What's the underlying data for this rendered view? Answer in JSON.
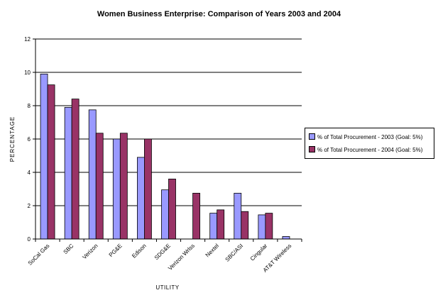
{
  "chart_data": {
    "type": "bar",
    "title": "Women Business Enterprise: Comparison of Years 2003 and 2004",
    "xlabel": "UTILITY",
    "ylabel": "PERCENTAGE",
    "ylim": [
      0,
      12
    ],
    "yticks": [
      "0",
      "2",
      "4",
      "6",
      "8",
      "10",
      "12"
    ],
    "grid": true,
    "legend_position": "right",
    "categories": [
      "SoCal Gas",
      "SBC",
      "Verizon",
      "PG&E",
      "Edison",
      "SDG&E",
      "Verizon Wrlss",
      "Nextel",
      "SBC/ASI",
      "Cingular",
      "AT&T Wireless"
    ],
    "series": [
      {
        "name": "% of Total Procurement - 2003 (Goal: 5%)",
        "color": "#9999FF",
        "values": [
          9.9,
          7.9,
          7.75,
          6.0,
          4.9,
          2.95,
          null,
          1.55,
          2.75,
          1.45,
          0.15
        ]
      },
      {
        "name": "% of Total Procurement - 2004 (Goal: 5%)",
        "color": "#993366",
        "values": [
          9.25,
          8.4,
          6.35,
          6.35,
          6.0,
          3.6,
          2.75,
          1.75,
          1.65,
          1.55,
          null
        ]
      }
    ]
  }
}
